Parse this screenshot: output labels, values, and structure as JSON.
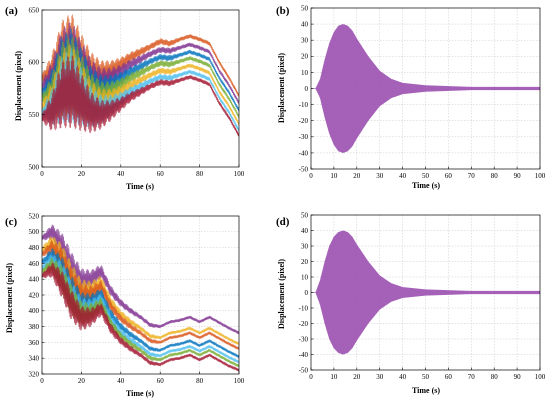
{
  "chart_data": [
    {
      "panel_label": "(a)",
      "type": "line",
      "xlabel": "Time (s)",
      "ylabel": "Displacement (pixel)",
      "xlim": [
        0,
        100
      ],
      "ylim": [
        500,
        650
      ],
      "xticks": [
        0,
        20,
        40,
        60,
        80,
        100
      ],
      "yticks": [
        500,
        550,
        600,
        650
      ],
      "grid": true,
      "x": [
        0,
        5,
        10,
        15,
        20,
        25,
        30,
        35,
        40,
        45,
        50,
        55,
        60,
        65,
        70,
        75,
        80,
        85,
        90,
        95,
        100
      ],
      "envelope_half_width": [
        4,
        18,
        32,
        36,
        28,
        20,
        14,
        10,
        7,
        5,
        4,
        3,
        3,
        3,
        2,
        2,
        2,
        2,
        2,
        2,
        2
      ],
      "series": [
        {
          "color": "#d95319",
          "values": [
            585,
            590,
            608,
            612,
            600,
            590,
            588,
            592,
            598,
            605,
            610,
            615,
            620,
            618,
            622,
            625,
            622,
            618,
            600,
            585,
            568
          ]
        },
        {
          "color": "#7e2f8e",
          "values": [
            578,
            583,
            600,
            604,
            593,
            583,
            581,
            585,
            591,
            598,
            603,
            608,
            612,
            611,
            614,
            617,
            614,
            610,
            592,
            578,
            561
          ]
        },
        {
          "color": "#0072bd",
          "values": [
            571,
            576,
            593,
            597,
            586,
            576,
            574,
            578,
            584,
            591,
            596,
            601,
            605,
            604,
            607,
            610,
            607,
            603,
            585,
            571,
            554
          ]
        },
        {
          "color": "#77ac30",
          "values": [
            565,
            570,
            587,
            591,
            580,
            570,
            568,
            572,
            578,
            585,
            590,
            595,
            599,
            598,
            601,
            604,
            601,
            597,
            579,
            565,
            548
          ]
        },
        {
          "color": "#edb120",
          "values": [
            558,
            563,
            580,
            584,
            573,
            563,
            561,
            565,
            571,
            578,
            583,
            588,
            592,
            591,
            594,
            597,
            594,
            590,
            572,
            558,
            541
          ]
        },
        {
          "color": "#4dbeee",
          "values": [
            552,
            557,
            574,
            578,
            567,
            557,
            555,
            559,
            565,
            572,
            577,
            582,
            586,
            585,
            588,
            591,
            588,
            584,
            566,
            552,
            535
          ]
        },
        {
          "color": "#a2142f",
          "values": [
            547,
            552,
            569,
            573,
            562,
            552,
            550,
            554,
            560,
            567,
            572,
            577,
            581,
            580,
            583,
            586,
            583,
            579,
            561,
            547,
            530
          ]
        }
      ]
    },
    {
      "panel_label": "(b)",
      "type": "line",
      "xlabel": "Time (s)",
      "ylabel": "Displacement (pixel)",
      "xlim": [
        0,
        100
      ],
      "ylim": [
        -50,
        50
      ],
      "xticks": [
        0,
        10,
        20,
        30,
        40,
        50,
        60,
        70,
        80,
        90,
        100
      ],
      "yticks": [
        -50,
        -40,
        -30,
        -20,
        -10,
        0,
        10,
        20,
        30,
        40,
        50
      ],
      "grid": true,
      "x": [
        0,
        2,
        4,
        6,
        8,
        10,
        12,
        14,
        16,
        18,
        20,
        25,
        30,
        35,
        40,
        50,
        60,
        70,
        80,
        90,
        100
      ],
      "series": [
        {
          "color": "#9b4fb0",
          "envelope_amplitude": [
            0,
            0,
            6,
            18,
            28,
            35,
            39,
            40,
            39,
            36,
            31,
            20,
            11,
            6,
            3.5,
            2,
            1.5,
            1,
            1,
            1,
            1
          ]
        }
      ]
    },
    {
      "panel_label": "(c)",
      "type": "line",
      "xlabel": "Time (s)",
      "ylabel": "Displacement (pixel)",
      "xlim": [
        0,
        100
      ],
      "ylim": [
        320,
        520
      ],
      "xticks": [
        0,
        20,
        40,
        60,
        80,
        100
      ],
      "yticks": [
        320,
        340,
        360,
        380,
        400,
        420,
        440,
        460,
        480,
        500,
        520
      ],
      "grid": true,
      "x": [
        0,
        5,
        10,
        15,
        20,
        25,
        30,
        35,
        40,
        45,
        50,
        55,
        60,
        65,
        70,
        75,
        80,
        85,
        90,
        95,
        100
      ],
      "envelope_half_width": [
        3,
        10,
        18,
        20,
        16,
        12,
        9,
        7,
        5,
        4,
        3,
        3,
        2,
        2,
        2,
        2,
        2,
        2,
        2,
        2,
        2
      ],
      "series": [
        {
          "color": "#7e2f8e",
          "values": [
            492,
            500,
            482,
            455,
            438,
            440,
            450,
            425,
            410,
            400,
            392,
            382,
            380,
            386,
            388,
            392,
            386,
            392,
            385,
            378,
            372
          ]
        },
        {
          "color": "#edb120",
          "values": [
            478,
            486,
            468,
            441,
            424,
            426,
            436,
            411,
            396,
            386,
            378,
            368,
            366,
            372,
            374,
            378,
            372,
            378,
            371,
            364,
            358
          ]
        },
        {
          "color": "#d95319",
          "values": [
            472,
            480,
            462,
            435,
            418,
            420,
            430,
            405,
            390,
            380,
            372,
            362,
            360,
            366,
            368,
            372,
            366,
            372,
            365,
            358,
            352
          ]
        },
        {
          "color": "#0072bd",
          "values": [
            462,
            470,
            452,
            425,
            408,
            410,
            420,
            395,
            380,
            370,
            362,
            352,
            350,
            356,
            358,
            362,
            356,
            362,
            355,
            348,
            342
          ]
        },
        {
          "color": "#4dbeee",
          "values": [
            455,
            463,
            445,
            418,
            401,
            403,
            413,
            388,
            373,
            363,
            355,
            345,
            343,
            349,
            351,
            355,
            349,
            355,
            348,
            341,
            335
          ]
        },
        {
          "color": "#77ac30",
          "values": [
            450,
            458,
            440,
            413,
            396,
            398,
            408,
            383,
            368,
            358,
            350,
            340,
            338,
            344,
            346,
            350,
            344,
            350,
            343,
            336,
            330
          ]
        },
        {
          "color": "#a2142f",
          "values": [
            444,
            452,
            434,
            407,
            390,
            392,
            402,
            377,
            362,
            352,
            344,
            334,
            332,
            338,
            340,
            344,
            338,
            344,
            337,
            330,
            325
          ]
        }
      ]
    },
    {
      "panel_label": "(d)",
      "type": "line",
      "xlabel": "Time (s)",
      "ylabel": "Displacement (pixel)",
      "xlim": [
        0,
        100
      ],
      "ylim": [
        -50,
        50
      ],
      "xticks": [
        0,
        10,
        20,
        30,
        40,
        50,
        60,
        70,
        80,
        90,
        100
      ],
      "yticks": [
        -50,
        -40,
        -30,
        -20,
        -10,
        0,
        10,
        20,
        30,
        40,
        50
      ],
      "grid": true,
      "x": [
        0,
        2,
        4,
        6,
        8,
        10,
        12,
        14,
        16,
        18,
        20,
        25,
        30,
        35,
        40,
        50,
        60,
        70,
        80,
        90,
        100
      ],
      "series": [
        {
          "color": "#9b4fb0",
          "envelope_amplitude": [
            0,
            0,
            8,
            20,
            30,
            36,
            39,
            40,
            39,
            36,
            31,
            20,
            11,
            6,
            3.5,
            2,
            1.5,
            1,
            1,
            1,
            1
          ]
        }
      ]
    }
  ]
}
